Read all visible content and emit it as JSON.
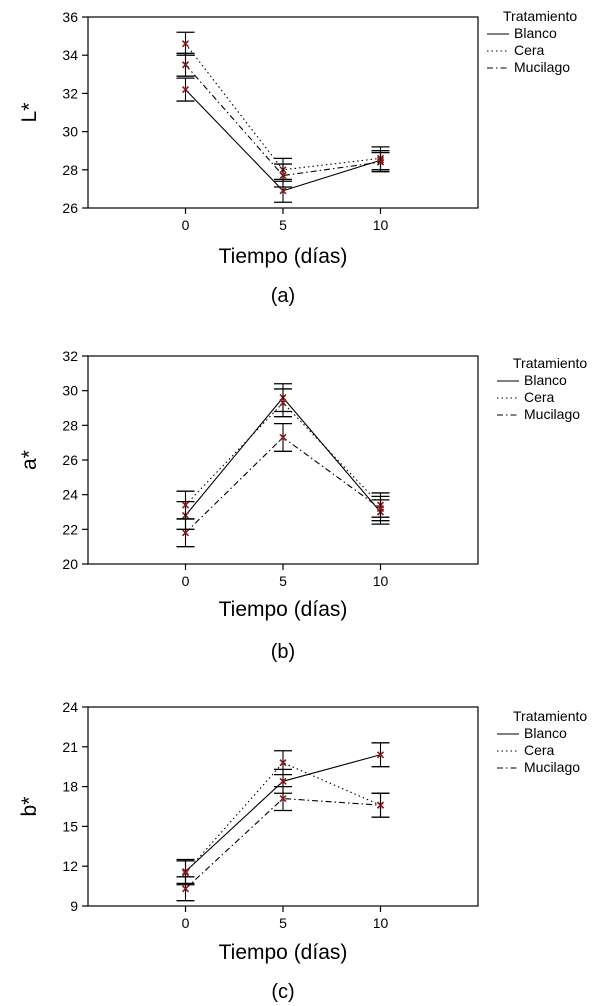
{
  "colors": {
    "axis": "#000000",
    "line": "#000000",
    "marker": "#8b1a1a",
    "background": "#ffffff"
  },
  "chart_data": [
    {
      "type": "line",
      "panel_label": "(a)",
      "xlabel": "Tiempo (días)",
      "ylabel": "L*",
      "x": [
        0,
        5,
        10
      ],
      "xticks": [
        "0",
        "5",
        "10"
      ],
      "xlim": [
        -5,
        15
      ],
      "ylim": [
        26,
        36
      ],
      "yticks": [
        26,
        28,
        30,
        32,
        34,
        36
      ],
      "legend": {
        "title": "Tratamiento",
        "position": "top-right",
        "entries": [
          "Blanco",
          "Cera",
          "Mucilago"
        ]
      },
      "series": [
        {
          "name": "Blanco",
          "style": "solid",
          "values": [
            32.2,
            26.9,
            28.5
          ],
          "err": [
            0.6,
            0.6,
            0.5
          ]
        },
        {
          "name": "Cera",
          "style": "dotted",
          "values": [
            34.6,
            28.0,
            28.6
          ],
          "err": [
            0.6,
            0.6,
            0.6
          ]
        },
        {
          "name": "Mucilago",
          "style": "dashdot",
          "values": [
            33.5,
            27.7,
            28.4
          ],
          "err": [
            0.6,
            0.6,
            0.5
          ]
        }
      ]
    },
    {
      "type": "line",
      "panel_label": "(b)",
      "xlabel": "Tiempo (días)",
      "ylabel": "a*",
      "x": [
        0,
        5,
        10
      ],
      "xticks": [
        "0",
        "5",
        "10"
      ],
      "xlim": [
        -5,
        15
      ],
      "ylim": [
        20,
        32
      ],
      "yticks": [
        20,
        22,
        24,
        26,
        28,
        30,
        32
      ],
      "legend": {
        "title": "Tratamiento",
        "position": "top-right",
        "entries": [
          "Blanco",
          "Cera",
          "Mucilago"
        ]
      },
      "series": [
        {
          "name": "Blanco",
          "style": "solid",
          "values": [
            22.8,
            29.6,
            23.0
          ],
          "err": [
            0.8,
            0.8,
            0.7
          ]
        },
        {
          "name": "Cera",
          "style": "dotted",
          "values": [
            23.4,
            29.3,
            23.4
          ],
          "err": [
            0.8,
            0.8,
            0.7
          ]
        },
        {
          "name": "Mucilago",
          "style": "dashdot",
          "values": [
            21.8,
            27.3,
            23.2
          ],
          "err": [
            0.8,
            0.8,
            0.7
          ]
        }
      ]
    },
    {
      "type": "line",
      "panel_label": "(c)",
      "xlabel": "Tiempo (días)",
      "ylabel": "b*",
      "x": [
        0,
        5,
        10
      ],
      "xticks": [
        "0",
        "5",
        "10"
      ],
      "xlim": [
        -5,
        15
      ],
      "ylim": [
        9,
        24
      ],
      "yticks": [
        9,
        12,
        15,
        18,
        21,
        24
      ],
      "legend": {
        "title": "Tratamiento",
        "position": "top-right",
        "entries": [
          "Blanco",
          "Cera",
          "Mucilago"
        ]
      },
      "series": [
        {
          "name": "Blanco",
          "style": "solid",
          "values": [
            11.6,
            18.4,
            20.4
          ],
          "err": [
            0.9,
            0.9,
            0.9
          ]
        },
        {
          "name": "Cera",
          "style": "dotted",
          "values": [
            11.5,
            19.8,
            16.6
          ],
          "err": [
            0.9,
            0.9,
            0.9
          ]
        },
        {
          "name": "Mucilago",
          "style": "dashdot",
          "values": [
            10.3,
            17.1,
            16.6
          ],
          "err": [
            0.9,
            0.9,
            0.9
          ]
        }
      ]
    }
  ]
}
